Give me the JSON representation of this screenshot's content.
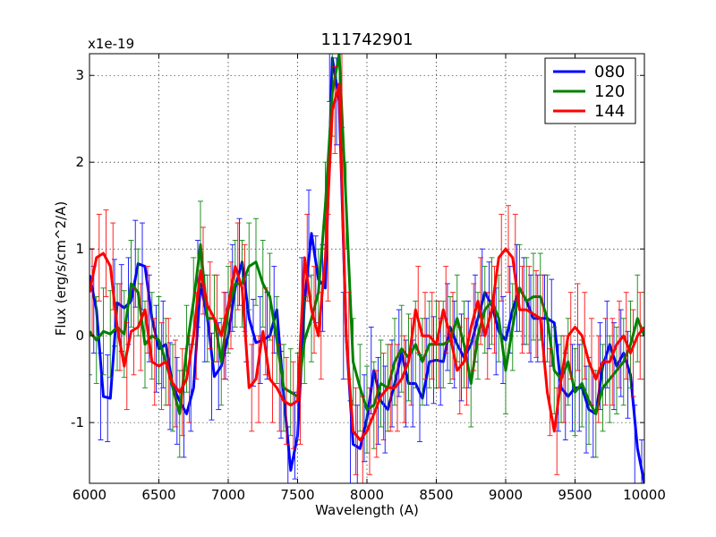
{
  "chart_data": {
    "type": "line",
    "title": "111742901",
    "xlabel": "Wavelength (A)",
    "ylabel": "Flux (erg/s/cm^2/A)",
    "offset_label": "x1e-19",
    "xlim": [
      6000,
      10000
    ],
    "ylim": [
      -1.7,
      3.25
    ],
    "xticks": [
      6000,
      6500,
      7000,
      7500,
      8000,
      8500,
      9000,
      9500,
      10000
    ],
    "yticks": [
      -1,
      0,
      1,
      2,
      3
    ],
    "grid": true,
    "legend_position": "top-right",
    "errorbar_half_width": 0.5,
    "series": [
      {
        "name": "080",
        "color": "#0000ff",
        "points": [
          [
            6000,
            0.7
          ],
          [
            6050,
            0.3
          ],
          [
            6100,
            -0.7
          ],
          [
            6150,
            -0.72
          ],
          [
            6200,
            0.38
          ],
          [
            6250,
            0.32
          ],
          [
            6300,
            0.4
          ],
          [
            6350,
            0.83
          ],
          [
            6400,
            0.8
          ],
          [
            6450,
            0.2
          ],
          [
            6500,
            -0.15
          ],
          [
            6550,
            -0.1
          ],
          [
            6600,
            -0.58
          ],
          [
            6650,
            -0.75
          ],
          [
            6700,
            -0.9
          ],
          [
            6750,
            -0.6
          ],
          [
            6800,
            0.6
          ],
          [
            6850,
            0.2
          ],
          [
            6900,
            -0.47
          ],
          [
            6950,
            -0.35
          ],
          [
            7000,
            0.0
          ],
          [
            7050,
            0.55
          ],
          [
            7100,
            0.85
          ],
          [
            7150,
            0.2
          ],
          [
            7200,
            -0.08
          ],
          [
            7250,
            -0.05
          ],
          [
            7300,
            0.0
          ],
          [
            7350,
            0.3
          ],
          [
            7400,
            -0.68
          ],
          [
            7450,
            -1.55
          ],
          [
            7500,
            -1.15
          ],
          [
            7550,
            0.4
          ],
          [
            7600,
            1.18
          ],
          [
            7650,
            0.65
          ],
          [
            7700,
            0.55
          ],
          [
            7750,
            3.2
          ],
          [
            7800,
            2.7
          ],
          [
            7850,
            0.0
          ],
          [
            7900,
            -1.25
          ],
          [
            7950,
            -1.3
          ],
          [
            8000,
            -0.95
          ],
          [
            8050,
            -0.4
          ],
          [
            8100,
            -0.75
          ],
          [
            8150,
            -0.85
          ],
          [
            8200,
            -0.55
          ],
          [
            8250,
            -0.2
          ],
          [
            8300,
            -0.55
          ],
          [
            8350,
            -0.55
          ],
          [
            8400,
            -0.72
          ],
          [
            8450,
            -0.3
          ],
          [
            8500,
            -0.28
          ],
          [
            8550,
            -0.3
          ],
          [
            8600,
            0.1
          ],
          [
            8650,
            -0.1
          ],
          [
            8700,
            -0.25
          ],
          [
            8750,
            -0.1
          ],
          [
            8800,
            0.2
          ],
          [
            8850,
            0.5
          ],
          [
            8900,
            0.35
          ],
          [
            8950,
            0.05
          ],
          [
            9000,
            -0.05
          ],
          [
            9050,
            0.3
          ],
          [
            9100,
            0.55
          ],
          [
            9150,
            0.4
          ],
          [
            9200,
            0.2
          ],
          [
            9250,
            0.2
          ],
          [
            9300,
            0.2
          ],
          [
            9350,
            0.15
          ],
          [
            9400,
            -0.6
          ],
          [
            9450,
            -0.7
          ],
          [
            9500,
            -0.6
          ],
          [
            9550,
            -0.6
          ],
          [
            9600,
            -0.85
          ],
          [
            9650,
            -0.9
          ],
          [
            9700,
            -0.35
          ],
          [
            9750,
            -0.1
          ],
          [
            9800,
            -0.35
          ],
          [
            9850,
            -0.2
          ],
          [
            9900,
            -0.45
          ],
          [
            9950,
            -1.3
          ],
          [
            10000,
            -1.7
          ]
        ]
      },
      {
        "name": "120",
        "color": "#008000",
        "points": [
          [
            6000,
            0.05
          ],
          [
            6050,
            -0.05
          ],
          [
            6100,
            0.05
          ],
          [
            6150,
            0.02
          ],
          [
            6200,
            0.1
          ],
          [
            6250,
            0.02
          ],
          [
            6300,
            0.6
          ],
          [
            6350,
            0.5
          ],
          [
            6400,
            -0.1
          ],
          [
            6450,
            0.0
          ],
          [
            6500,
            -0.05
          ],
          [
            6550,
            -0.3
          ],
          [
            6600,
            -0.6
          ],
          [
            6650,
            -0.9
          ],
          [
            6700,
            -0.15
          ],
          [
            6750,
            0.4
          ],
          [
            6800,
            1.05
          ],
          [
            6850,
            0.2
          ],
          [
            6900,
            0.2
          ],
          [
            6950,
            -0.3
          ],
          [
            7000,
            0.3
          ],
          [
            7050,
            0.6
          ],
          [
            7100,
            0.6
          ],
          [
            7150,
            0.8
          ],
          [
            7200,
            0.85
          ],
          [
            7250,
            0.6
          ],
          [
            7300,
            0.45
          ],
          [
            7350,
            -0.05
          ],
          [
            7400,
            -0.6
          ],
          [
            7450,
            -0.65
          ],
          [
            7500,
            -0.7
          ],
          [
            7550,
            -0.05
          ],
          [
            7600,
            0.2
          ],
          [
            7650,
            0.5
          ],
          [
            7700,
            1.5
          ],
          [
            7750,
            2.8
          ],
          [
            7800,
            3.25
          ],
          [
            7850,
            1.5
          ],
          [
            7900,
            -0.3
          ],
          [
            7950,
            -0.6
          ],
          [
            8000,
            -0.85
          ],
          [
            8050,
            -0.8
          ],
          [
            8100,
            -0.55
          ],
          [
            8150,
            -0.6
          ],
          [
            8200,
            -0.3
          ],
          [
            8250,
            -0.15
          ],
          [
            8300,
            -0.25
          ],
          [
            8350,
            -0.1
          ],
          [
            8400,
            -0.3
          ],
          [
            8450,
            -0.1
          ],
          [
            8500,
            -0.1
          ],
          [
            8550,
            -0.1
          ],
          [
            8600,
            -0.05
          ],
          [
            8650,
            0.2
          ],
          [
            8700,
            -0.1
          ],
          [
            8750,
            -0.55
          ],
          [
            8800,
            0.0
          ],
          [
            8850,
            0.3
          ],
          [
            8900,
            0.4
          ],
          [
            8950,
            0.2
          ],
          [
            9000,
            -0.4
          ],
          [
            9050,
            0.1
          ],
          [
            9100,
            0.55
          ],
          [
            9150,
            0.4
          ],
          [
            9200,
            0.45
          ],
          [
            9250,
            0.45
          ],
          [
            9300,
            0.2
          ],
          [
            9350,
            -0.4
          ],
          [
            9400,
            -0.5
          ],
          [
            9450,
            -0.3
          ],
          [
            9500,
            -0.65
          ],
          [
            9550,
            -0.55
          ],
          [
            9600,
            -0.75
          ],
          [
            9650,
            -0.9
          ],
          [
            9700,
            -0.6
          ],
          [
            9750,
            -0.5
          ],
          [
            9800,
            -0.4
          ],
          [
            9850,
            -0.3
          ],
          [
            9900,
            -0.1
          ],
          [
            9950,
            0.2
          ],
          [
            10000,
            0.0
          ]
        ]
      },
      {
        "name": "144",
        "color": "#ff0000",
        "points": [
          [
            6000,
            0.5
          ],
          [
            6050,
            0.9
          ],
          [
            6100,
            0.95
          ],
          [
            6150,
            0.8
          ],
          [
            6200,
            0.1
          ],
          [
            6250,
            -0.35
          ],
          [
            6300,
            0.05
          ],
          [
            6350,
            0.1
          ],
          [
            6400,
            0.3
          ],
          [
            6450,
            -0.3
          ],
          [
            6500,
            -0.35
          ],
          [
            6550,
            -0.3
          ],
          [
            6600,
            -0.55
          ],
          [
            6650,
            -0.65
          ],
          [
            6700,
            -0.5
          ],
          [
            6750,
            0.0
          ],
          [
            6800,
            0.75
          ],
          [
            6850,
            0.35
          ],
          [
            6900,
            0.2
          ],
          [
            6950,
            0.0
          ],
          [
            7000,
            0.35
          ],
          [
            7050,
            0.8
          ],
          [
            7100,
            0.55
          ],
          [
            7150,
            -0.6
          ],
          [
            7200,
            -0.5
          ],
          [
            7250,
            0.05
          ],
          [
            7300,
            -0.5
          ],
          [
            7350,
            -0.6
          ],
          [
            7400,
            -0.75
          ],
          [
            7450,
            -0.8
          ],
          [
            7500,
            -0.75
          ],
          [
            7550,
            0.9
          ],
          [
            7600,
            0.3
          ],
          [
            7650,
            0.0
          ],
          [
            7700,
            0.9
          ],
          [
            7750,
            2.6
          ],
          [
            7800,
            2.9
          ],
          [
            7850,
            0.0
          ],
          [
            7900,
            -1.1
          ],
          [
            7950,
            -1.2
          ],
          [
            8000,
            -1.1
          ],
          [
            8050,
            -0.9
          ],
          [
            8100,
            -0.7
          ],
          [
            8150,
            -0.6
          ],
          [
            8200,
            -0.6
          ],
          [
            8250,
            -0.5
          ],
          [
            8300,
            -0.3
          ],
          [
            8350,
            0.3
          ],
          [
            8400,
            0.0
          ],
          [
            8450,
            0.0
          ],
          [
            8500,
            -0.1
          ],
          [
            8550,
            0.3
          ],
          [
            8600,
            0.0
          ],
          [
            8650,
            -0.4
          ],
          [
            8700,
            -0.3
          ],
          [
            8750,
            0.1
          ],
          [
            8800,
            0.4
          ],
          [
            8850,
            0.0
          ],
          [
            8900,
            0.3
          ],
          [
            8950,
            0.9
          ],
          [
            9000,
            1.0
          ],
          [
            9050,
            0.9
          ],
          [
            9100,
            0.3
          ],
          [
            9150,
            0.3
          ],
          [
            9200,
            0.25
          ],
          [
            9250,
            0.2
          ],
          [
            9300,
            -0.65
          ],
          [
            9350,
            -1.1
          ],
          [
            9400,
            -0.5
          ],
          [
            9450,
            0.0
          ],
          [
            9500,
            0.1
          ],
          [
            9550,
            0.0
          ],
          [
            9600,
            -0.3
          ],
          [
            9650,
            -0.5
          ],
          [
            9700,
            -0.3
          ],
          [
            9750,
            -0.3
          ],
          [
            9800,
            -0.1
          ],
          [
            9850,
            0.0
          ],
          [
            9900,
            -0.2
          ],
          [
            9950,
            0.0
          ],
          [
            10000,
            0.1
          ]
        ]
      }
    ]
  }
}
